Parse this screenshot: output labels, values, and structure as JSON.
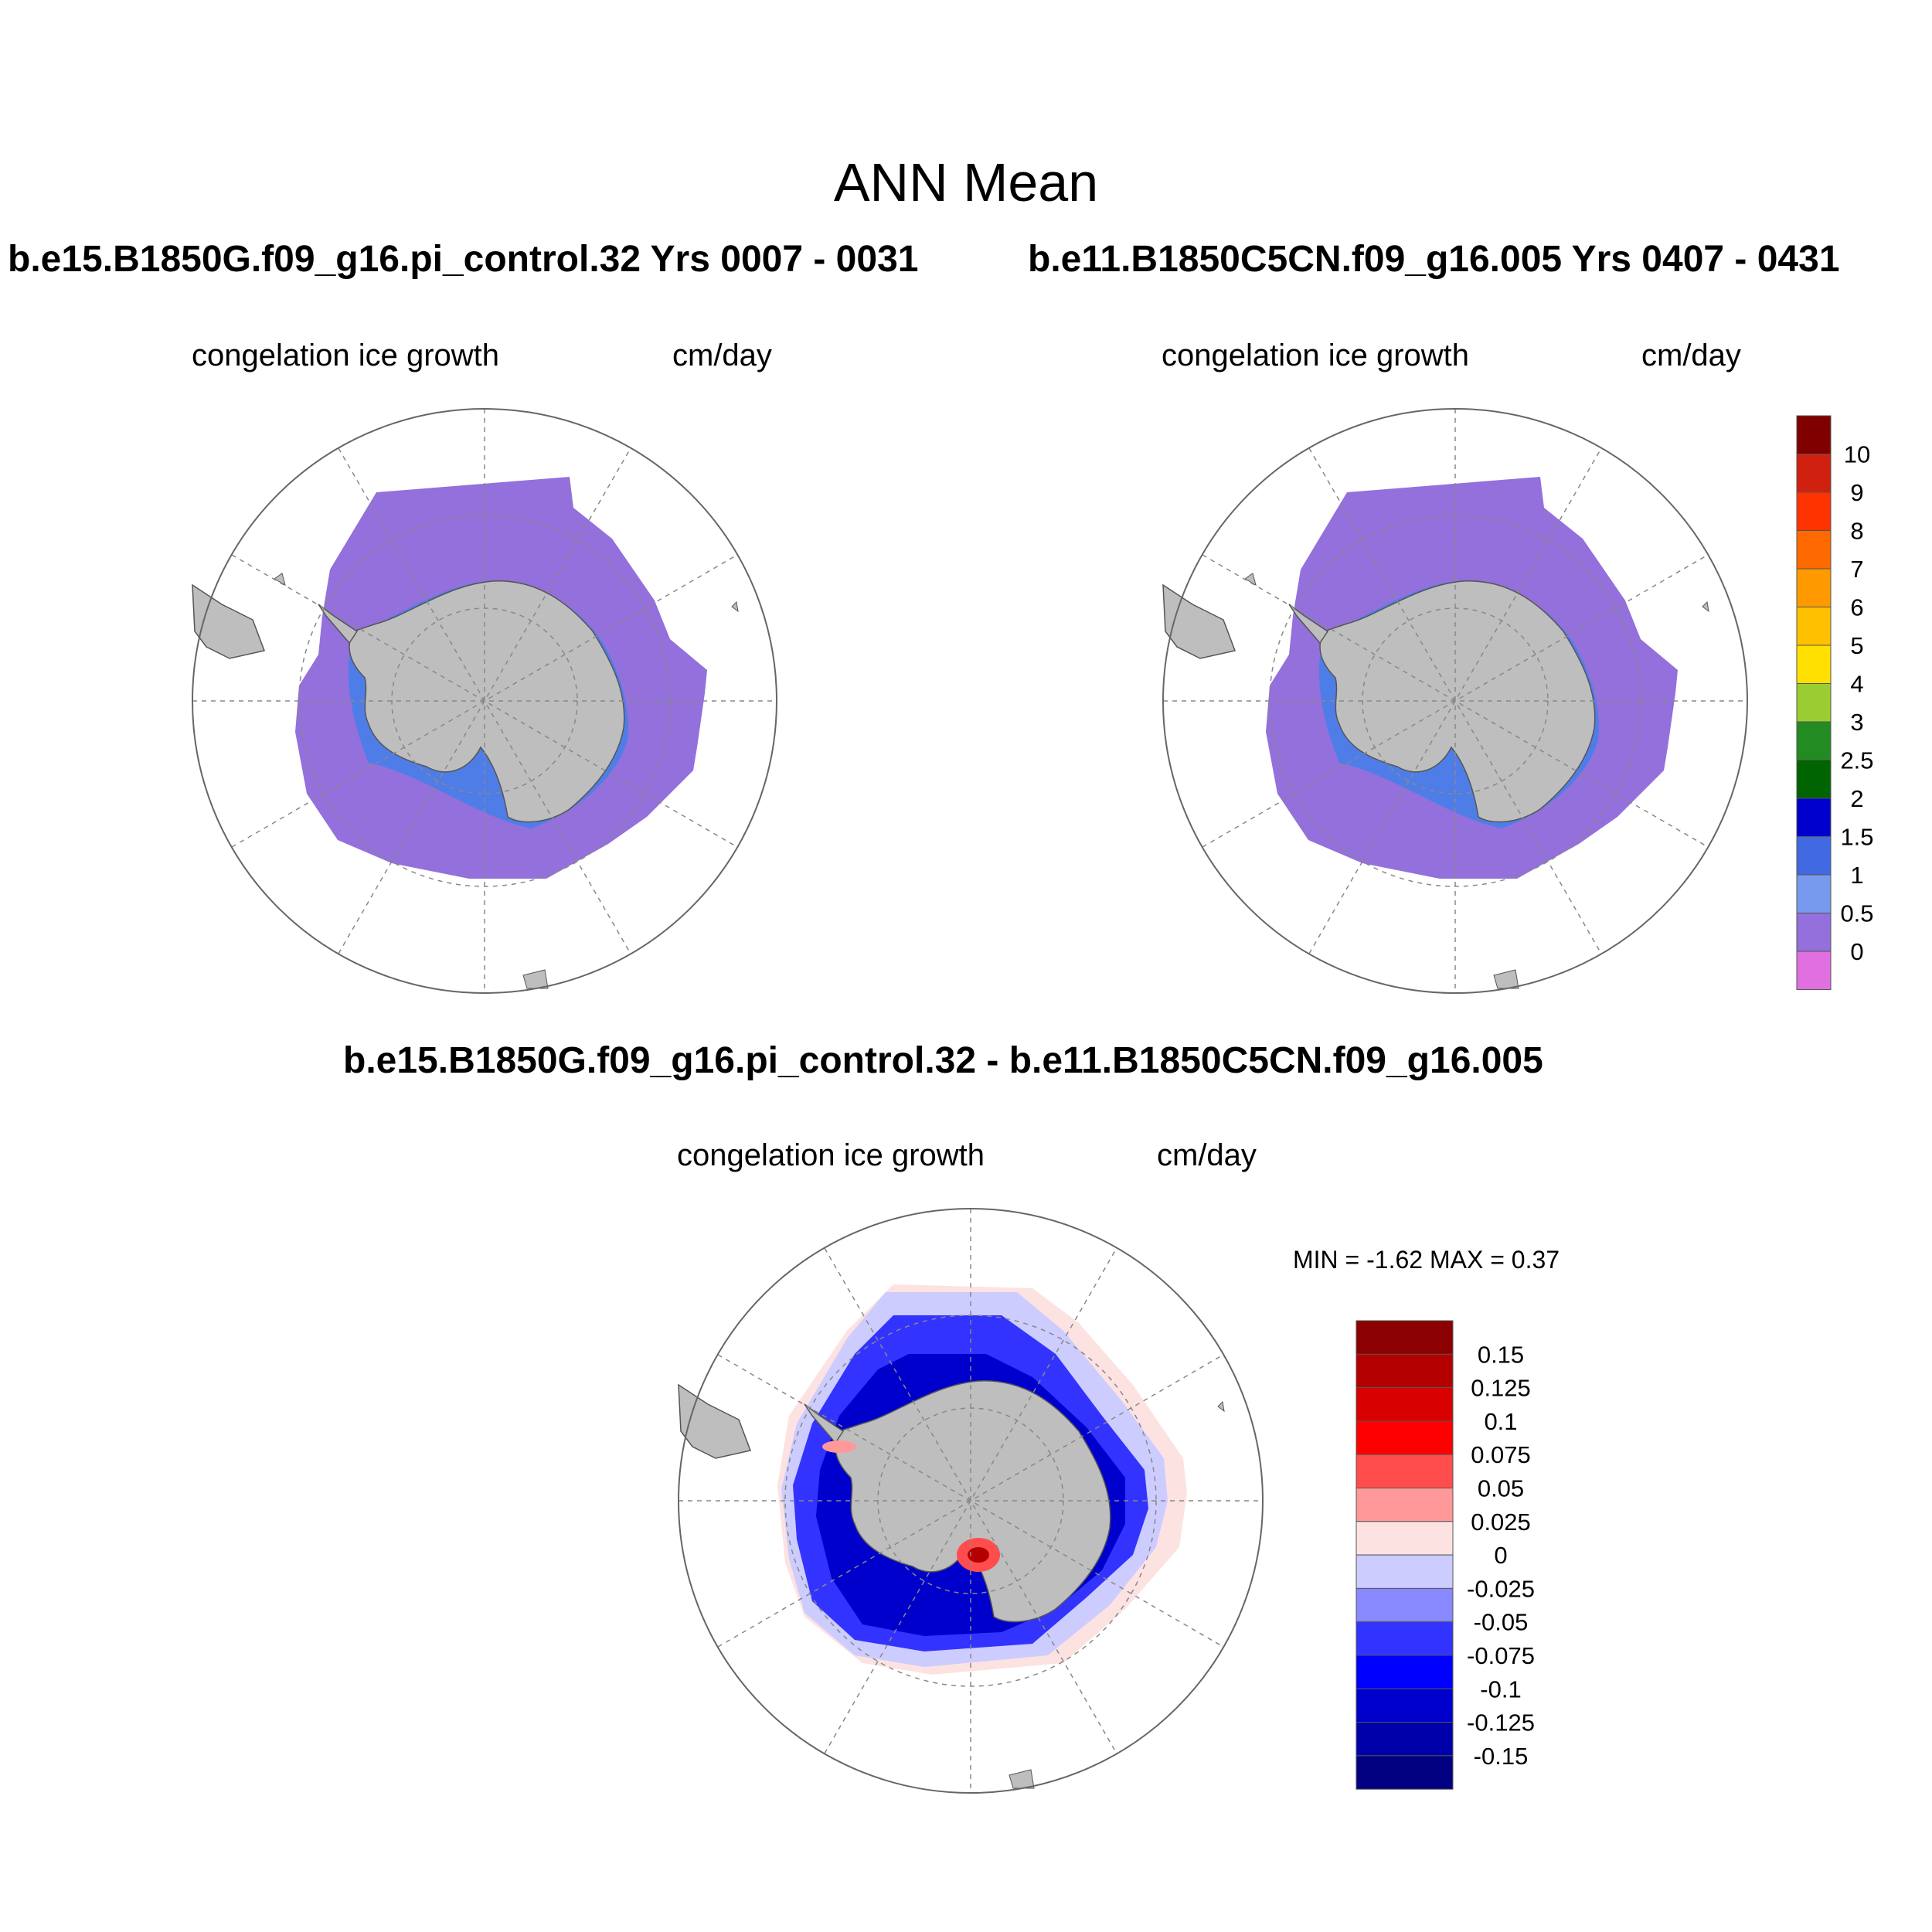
{
  "title": "ANN Mean",
  "panels": [
    {
      "case": "b.e15.B1850G.f09_g16.pi_control.32  Yrs 0007 - 0031",
      "field": "congelation ice growth",
      "units": "cm/day"
    },
    {
      "case": "b.e11.B1850C5CN.f09_g16.005  Yrs 0407 - 0431",
      "field": "congelation ice growth",
      "units": "cm/day"
    }
  ],
  "diff_panel": {
    "case": "b.e15.B1850G.f09_g16.pi_control.32 - b.e11.B1850C5CN.f09_g16.005",
    "field": "congelation ice growth",
    "units": "cm/day",
    "minmax": "MIN =  -1.62 MAX =   0.37"
  },
  "colorbar_main": {
    "labels": [
      "10",
      "9",
      "8",
      "7",
      "6",
      "5",
      "4",
      "3",
      "2.5",
      "2",
      "1.5",
      "1",
      "0.5",
      "0"
    ],
    "colors": [
      "#800000",
      "#d02010",
      "#ff3300",
      "#ff6a00",
      "#ff9900",
      "#ffc000",
      "#ffe000",
      "#9acd32",
      "#228b22",
      "#006400",
      "#0000cd",
      "#4169e1",
      "#7799ee",
      "#9370db",
      "#e070e0"
    ]
  },
  "colorbar_diff": {
    "labels": [
      "0.15",
      "0.125",
      "0.1",
      "0.075",
      "0.05",
      "0.025",
      "0",
      "-0.025",
      "-0.05",
      "-0.075",
      "-0.1",
      "-0.125",
      "-0.15"
    ],
    "colors": [
      "#8b0000",
      "#b40000",
      "#d80000",
      "#ff0000",
      "#ff4d4d",
      "#ff9999",
      "#fde2e2",
      "#ccccff",
      "#8888ff",
      "#3333ff",
      "#0000ff",
      "#0000cc",
      "#0000aa",
      "#000080"
    ]
  }
}
